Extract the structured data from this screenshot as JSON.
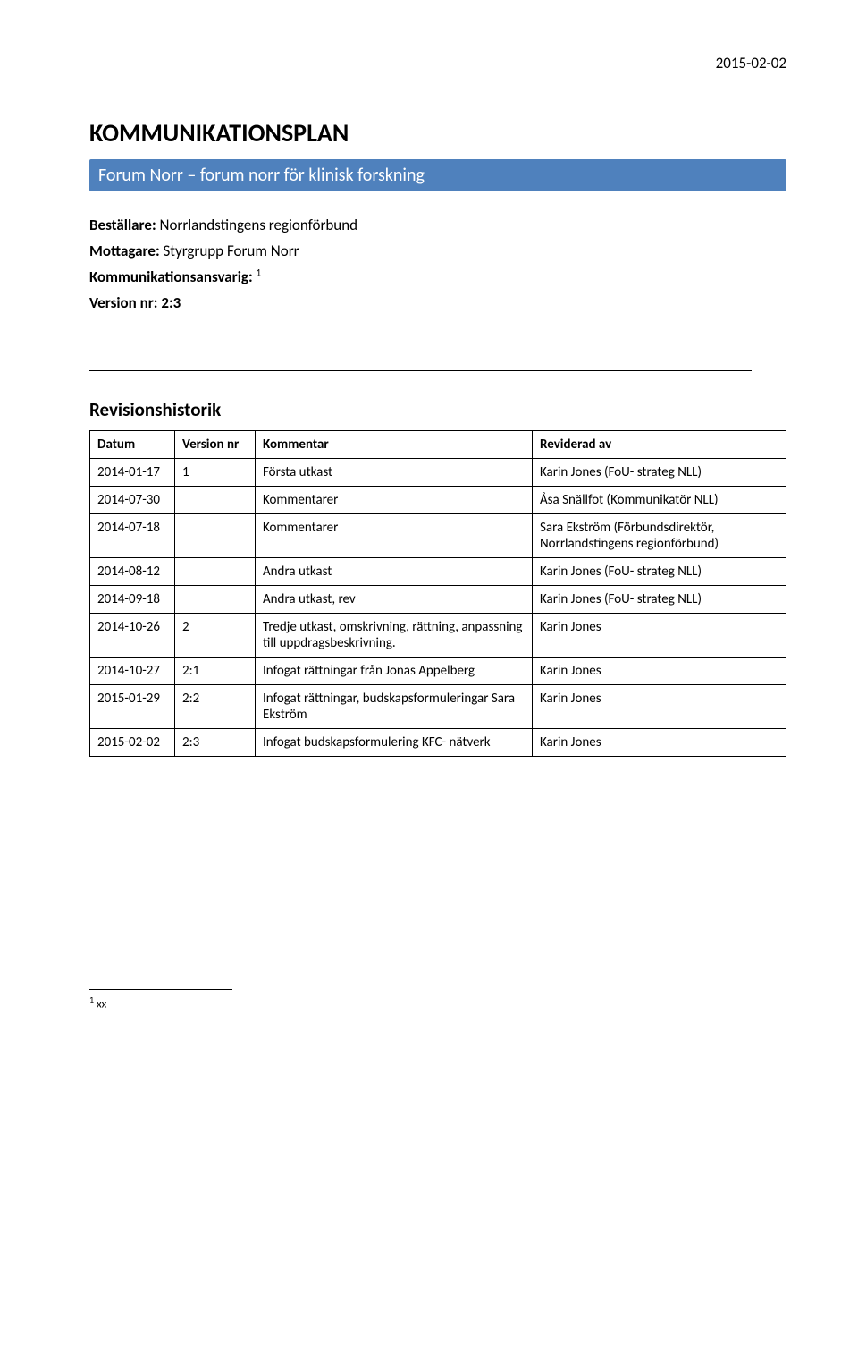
{
  "header_date": "2015-02-02",
  "main_title": "KOMMUNIKATIONSPLAN",
  "subtitle": "Forum Norr – forum norr för klinisk forskning",
  "meta": {
    "bestallare_label": "Beställare:",
    "bestallare_value": "Norrlandstingens regionförbund",
    "mottagare_label": "Mottagare:",
    "mottagare_value": "Styrgrupp Forum Norr",
    "komm_label": "Kommunikationsansvarig: ",
    "komm_sup": "1",
    "version_label": "Version nr: 2:3"
  },
  "section_title": "Revisionshistorik",
  "table": {
    "headers": [
      "Datum",
      "Version nr",
      "Kommentar",
      "Reviderad av"
    ],
    "rows": [
      [
        "2014-01-17",
        "1",
        "Första utkast",
        "Karin Jones (FoU- strateg NLL)"
      ],
      [
        "2014-07-30",
        "",
        "Kommentarer",
        "Åsa Snällfot (Kommunikatör NLL)"
      ],
      [
        "2014-07-18",
        "",
        "Kommentarer",
        "Sara Ekström (Förbundsdirektör, Norrlandstingens regionförbund)"
      ],
      [
        "2014-08-12",
        "",
        "Andra utkast",
        "Karin Jones (FoU- strateg NLL)"
      ],
      [
        "2014-09-18",
        "",
        "Andra utkast, rev",
        "Karin Jones (FoU- strateg NLL)"
      ],
      [
        "2014-10-26",
        "2",
        "Tredje utkast, omskrivning, rättning, anpassning till uppdragsbeskrivning.",
        "Karin Jones"
      ],
      [
        "2014-10-27",
        "2:1",
        "Infogat rättningar från Jonas Appelberg",
        "Karin Jones"
      ],
      [
        "2015-01-29",
        "2:2",
        "Infogat rättningar, budskapsformuleringar Sara Ekström",
        "Karin Jones"
      ],
      [
        "2015-02-02",
        "2:3",
        "Infogat budskapsformulering KFC- nätverk",
        "Karin Jones"
      ]
    ]
  },
  "footnote": {
    "sup": "1",
    "text": " xx"
  }
}
